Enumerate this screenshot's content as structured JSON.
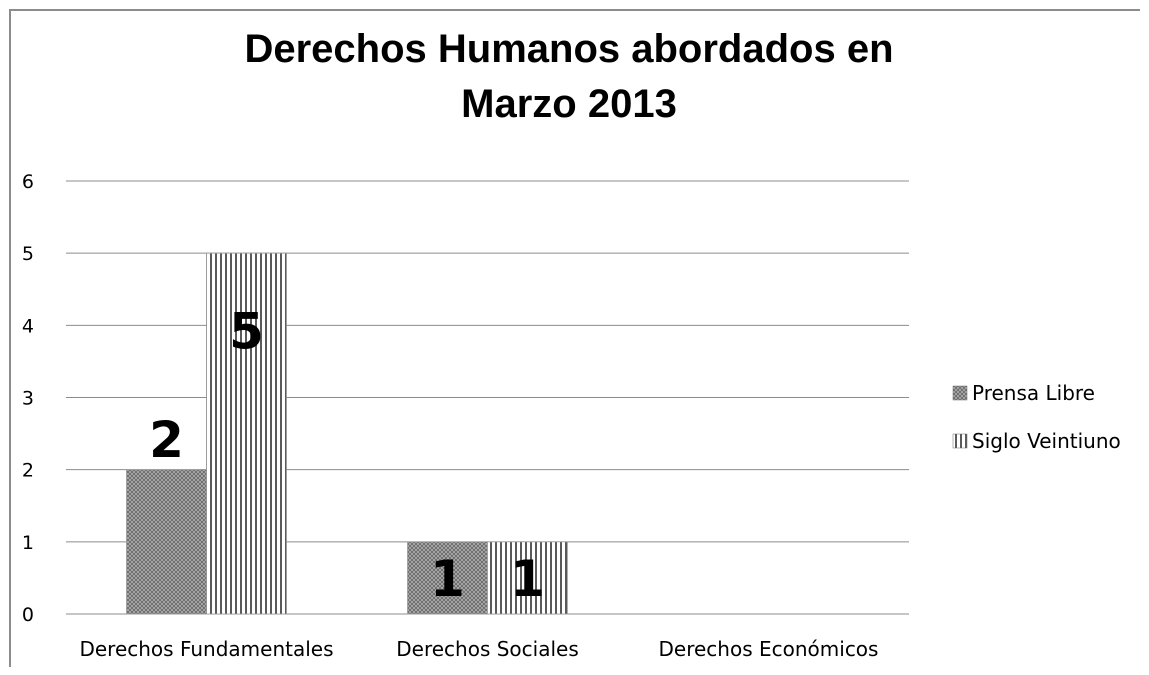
{
  "chart_data": {
    "type": "bar",
    "title": "Derechos Humanos abordados en Marzo 2013",
    "title_lines": [
      "Derechos Humanos abordados en",
      "Marzo 2013"
    ],
    "categories": [
      "Derechos Fundamentales",
      "Derechos Sociales",
      "Derechos Económicos"
    ],
    "series": [
      {
        "name": "Prensa Libre",
        "values": [
          2,
          1,
          0
        ],
        "labels": [
          "2",
          "1",
          ""
        ],
        "pattern": "crosshatch"
      },
      {
        "name": "Siglo Veintiuno",
        "values": [
          5,
          1,
          0
        ],
        "labels": [
          "5",
          "1",
          ""
        ],
        "pattern": "vertical-stripes"
      }
    ],
    "xlabel": "",
    "ylabel": "",
    "ylim": [
      0,
      6
    ],
    "yticks": [
      "0",
      "1",
      "2",
      "3",
      "4",
      "5",
      "6"
    ],
    "grid": true,
    "legend_position": "right"
  },
  "colors": {
    "gridline": "#8c8c8c",
    "bar_light": "#ffffff",
    "bar_dark": "#555555"
  }
}
